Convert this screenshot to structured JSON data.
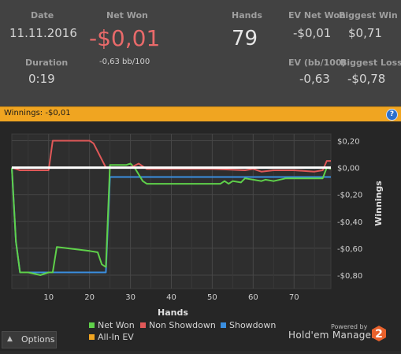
{
  "stats": {
    "date_label": "Date",
    "date_value": "11.11.2016",
    "netwon_label": "Net Won",
    "netwon_value": "-$0,01",
    "netwon_sub": "-0,63 bb/100",
    "hands_label": "Hands",
    "hands_value": "79",
    "ev_net_label": "EV Net Won",
    "ev_net_value": "-$0,01",
    "biggest_win_label": "Biggest Win",
    "biggest_win_value": "$0,71",
    "duration_label": "Duration",
    "duration_value": "0:19",
    "ev_bb_label": "EV (bb/100)",
    "ev_bb_value": "-0,63",
    "biggest_loss_label": "Biggest Loss",
    "biggest_loss_value": "-$0,78"
  },
  "winnings_bar": {
    "label": "Winnings: -$0,01",
    "help_icon": "help-icon"
  },
  "legend": {
    "net_won": "Net Won",
    "non_showdown": "Non Showdown",
    "showdown": "Showdown",
    "allin_ev": "All-In EV"
  },
  "options_label": "Options",
  "brand": {
    "powered": "Powered by",
    "name": "Hold'em Manager",
    "logo_number": "2"
  },
  "colors": {
    "net_won": "#5fd14a",
    "non_showdown": "#e05858",
    "showdown": "#3a8ee0",
    "allin_ev": "#f0a521"
  },
  "chart_data": {
    "type": "line",
    "xlabel": "Hands",
    "ylabel": "Winnings",
    "xlim": [
      1,
      79
    ],
    "ylim": [
      -0.9,
      0.25
    ],
    "x_ticks": [
      10,
      20,
      30,
      40,
      50,
      60,
      70
    ],
    "y_ticks": [
      0.2,
      0.0,
      -0.2,
      -0.4,
      -0.6,
      -0.8
    ],
    "y_tick_labels": [
      "$0,20",
      "$0,00",
      "-$0,20",
      "-$0,40",
      "-$0,60",
      "-$0,80"
    ],
    "grid": true,
    "legend_position": "bottom",
    "series": [
      {
        "name": "Net Won",
        "color": "#5fd14a",
        "x": [
          1,
          2,
          3,
          5,
          8,
          10,
          11,
          12,
          20,
          22,
          23,
          24,
          25,
          26,
          29,
          30,
          31,
          32,
          33,
          34,
          35,
          36,
          37,
          40,
          44,
          46,
          48,
          50,
          52,
          53,
          54,
          55,
          57,
          58,
          60,
          62,
          63,
          65,
          68,
          70,
          72,
          74,
          76,
          77,
          78,
          79
        ],
        "y": [
          0.0,
          -0.55,
          -0.78,
          -0.78,
          -0.8,
          -0.78,
          -0.78,
          -0.59,
          -0.62,
          -0.63,
          -0.72,
          -0.74,
          0.02,
          0.02,
          0.02,
          0.03,
          0.0,
          -0.05,
          -0.1,
          -0.12,
          -0.12,
          -0.12,
          -0.12,
          -0.12,
          -0.12,
          -0.12,
          -0.12,
          -0.12,
          -0.12,
          -0.1,
          -0.12,
          -0.1,
          -0.11,
          -0.08,
          -0.09,
          -0.1,
          -0.09,
          -0.1,
          -0.08,
          -0.08,
          -0.08,
          -0.08,
          -0.08,
          -0.08,
          0.0,
          -0.01
        ]
      },
      {
        "name": "Non Showdown",
        "color": "#e05858",
        "x": [
          1,
          3,
          10,
          11,
          12,
          20,
          21,
          24,
          25,
          30,
          32,
          34,
          40,
          50,
          58,
          60,
          62,
          65,
          70,
          75,
          77,
          78,
          79
        ],
        "y": [
          0.0,
          -0.02,
          -0.02,
          0.2,
          0.2,
          0.2,
          0.18,
          0.0,
          0.0,
          0.0,
          0.03,
          -0.01,
          -0.01,
          -0.01,
          -0.02,
          -0.01,
          -0.03,
          -0.02,
          -0.02,
          -0.03,
          -0.02,
          0.05,
          0.05
        ]
      },
      {
        "name": "Showdown",
        "color": "#3a8ee0",
        "x": [
          1,
          2,
          3,
          10,
          11,
          24,
          25,
          30,
          40,
          50,
          60,
          70,
          75,
          79
        ],
        "y": [
          0.0,
          -0.55,
          -0.78,
          -0.78,
          -0.78,
          -0.78,
          -0.07,
          -0.07,
          -0.07,
          -0.07,
          -0.07,
          -0.07,
          -0.07,
          -0.07
        ]
      },
      {
        "name": "All-In EV",
        "color": "#f0a521",
        "x": [
          1,
          79
        ],
        "y": [
          0.0,
          0.0
        ]
      }
    ]
  }
}
